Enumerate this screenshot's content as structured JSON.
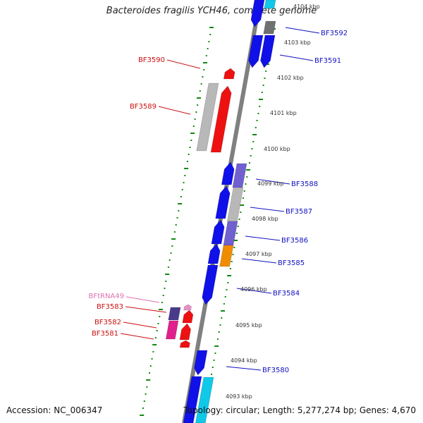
{
  "title": "Bacteroides fragilis YCH46, complete genome",
  "footer": {
    "accession": "Accession: NC_006347",
    "summary": "Topology: circular; Length: 5,277,274 bp; Genes: 4,670"
  },
  "colors": {
    "blue": "#1010e8",
    "red": "#ee1111",
    "gray": "#b8b8b8",
    "darkgray": "#707070",
    "purple": "#7060d0",
    "orange": "#f08c00",
    "cyan": "#10c8e8",
    "magenta": "#e0208c",
    "darkpurple": "#4a3a8c",
    "pink": "#e890c8",
    "green": "#118811",
    "label_blue": "#1010c0",
    "label_red": "#cc1010",
    "label_pink": "#e070b0"
  },
  "scale_labels": [
    "4104 kbp",
    "4103 kbp",
    "4102 kbp",
    "4101 kbp",
    "4100 kbp",
    "4099 kbp",
    "4098 kbp",
    "4097 kbp",
    "4096 kbp",
    "4095 kbp",
    "4094 kbp",
    "4093 kbp"
  ],
  "gene_labels_right": [
    "BF3592",
    "BF3591",
    "BF3588",
    "BF3587",
    "BF3586",
    "BF3585",
    "BF3584",
    "BF3580"
  ],
  "gene_labels_left": [
    "BF3590",
    "BF3589",
    "BFtRNA49",
    "BF3583",
    "BF3582",
    "BF3581"
  ]
}
